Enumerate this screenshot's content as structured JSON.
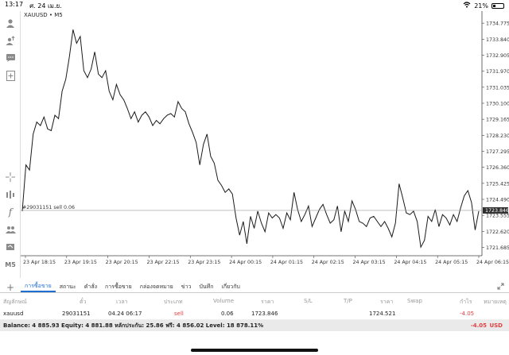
{
  "status_bar": {
    "time": "13:17",
    "date": "ศ. 24 เม.ย.",
    "battery": "21%",
    "battery_level": 0.21
  },
  "chart": {
    "symbol": "XAUUSD",
    "timeframe": "M5",
    "order_line_label": "#29031151 sell 0.06",
    "current_price": "1723.846",
    "y_ticks": [
      "1734.775",
      "1733.840",
      "1732.905",
      "1731.970",
      "1731.035",
      "1730.100",
      "1729.165",
      "1728.230",
      "1727.295",
      "1726.360",
      "1725.425",
      "1724.490",
      "1723.555",
      "1722.620",
      "1721.685"
    ],
    "x_ticks": [
      "23 Apr 18:15",
      "23 Apr 19:15",
      "23 Apr 20:15",
      "23 Apr 22:15",
      "23 Apr 23:15",
      "24 Apr 00:15",
      "24 Apr 01:15",
      "24 Apr 02:15",
      "24 Apr 03:15",
      "24 Apr 04:15",
      "24 Apr 05:15",
      "24 Apr 06:15"
    ],
    "colors": {
      "line": "#1a1a1a",
      "order_line": "#9a9a9a",
      "price_tag_bg": "#2f2f2f",
      "accent": "#1f6fd1",
      "loss": "#e04040"
    }
  },
  "toolbar": {
    "icons": [
      "person-icon",
      "user-upload-icon",
      "chat-icon",
      "new-document-icon",
      "crosshair-icon",
      "objects-icon",
      "function-icon",
      "group-icon",
      "periods-icon",
      "timeframe-m5-icon"
    ],
    "timeframe_label": "M5"
  },
  "tabs": {
    "items": [
      "การซื้อขาย",
      "สถานะ",
      "คำสั่ง",
      "การซื้อขาย",
      "กล่องจดหมาย",
      "ข่าว",
      "บันทึก",
      "เกี่ยวกับ"
    ],
    "active_index": 0
  },
  "table": {
    "headers": [
      "สัญลักษณ์",
      "ตั๋ว",
      "เวลา",
      "ประเภท",
      "Volume",
      "ราคา",
      "S/L",
      "T/P",
      "ราคา",
      "Swap",
      "กำไร",
      "หมายเหตุ"
    ],
    "rows": [
      {
        "symbol": "xauusd",
        "ticket": "29031151",
        "time": "04.24 06:17",
        "type": "sell",
        "volume": "0.06",
        "open_price": "1723.846",
        "sl": "",
        "tp": "",
        "price": "1724.521",
        "swap": "",
        "profit": "-4.05",
        "comment": ""
      }
    ]
  },
  "balance": {
    "text": "Balance: 4 885.93 Equity: 4 881.88 หลักประกัน: 25.86 ฟรี: 4 856.02 Level: 18 878.11%",
    "profit": "-4.05",
    "currency": "USD"
  },
  "chart_data": {
    "type": "line",
    "ylim": [
      1721.2,
      1735.2
    ],
    "values": [
      1723.8,
      1726.5,
      1726.2,
      1728.3,
      1729.0,
      1728.8,
      1729.3,
      1728.6,
      1728.5,
      1729.4,
      1729.2,
      1730.8,
      1731.5,
      1732.8,
      1734.4,
      1733.6,
      1734.0,
      1732.0,
      1731.6,
      1732.1,
      1733.1,
      1731.8,
      1731.6,
      1732.0,
      1730.8,
      1730.3,
      1731.2,
      1730.6,
      1730.3,
      1729.8,
      1729.2,
      1729.6,
      1729.0,
      1729.4,
      1729.6,
      1729.3,
      1728.8,
      1729.1,
      1728.9,
      1729.2,
      1729.4,
      1729.5,
      1729.3,
      1730.2,
      1729.8,
      1729.6,
      1728.9,
      1728.4,
      1727.8,
      1726.5,
      1727.7,
      1728.3,
      1727.0,
      1726.6,
      1725.6,
      1725.3,
      1724.9,
      1725.1,
      1724.8,
      1723.4,
      1722.4,
      1723.2,
      1721.9,
      1723.5,
      1722.8,
      1723.8,
      1723.1,
      1722.6,
      1723.7,
      1723.4,
      1723.6,
      1723.4,
      1722.8,
      1723.7,
      1723.3,
      1724.9,
      1723.9,
      1723.2,
      1723.6,
      1724.1,
      1722.9,
      1723.4,
      1723.9,
      1724.2,
      1723.6,
      1723.1,
      1723.3,
      1724.1,
      1722.6,
      1723.8,
      1723.2,
      1724.4,
      1723.9,
      1723.2,
      1723.1,
      1722.9,
      1723.4,
      1723.5,
      1723.2,
      1722.9,
      1723.2,
      1722.8,
      1722.3,
      1723.1,
      1725.4,
      1724.6,
      1723.7,
      1723.6,
      1723.8,
      1723.2,
      1721.7,
      1722.1,
      1723.5,
      1723.2,
      1723.9,
      1722.9,
      1723.6,
      1723.4,
      1723.0,
      1723.6,
      1723.2,
      1724.0,
      1724.7,
      1725.0,
      1724.3,
      1722.7,
      1723.8
    ],
    "title": "XAUUSD • M5",
    "xlabel": "",
    "ylabel": "",
    "grid": false
  }
}
